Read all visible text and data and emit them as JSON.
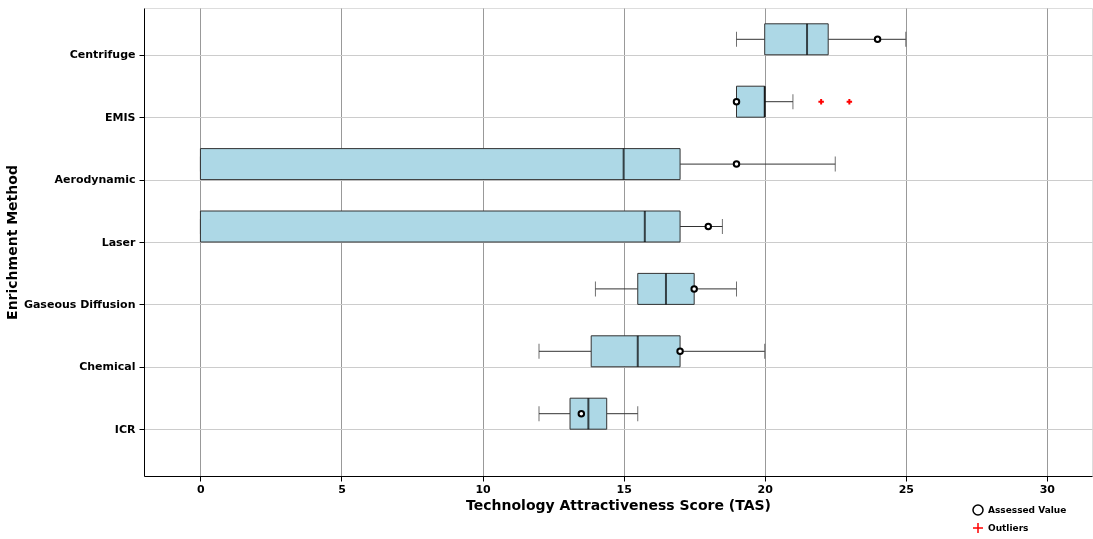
{
  "chart_data": {
    "type": "box",
    "orientation": "horizontal",
    "xlabel": "Technology Attractiveness Score (TAS)",
    "ylabel": "Enrichment Method",
    "categories": [
      "Centrifuge",
      "EMIS",
      "Aerodynamic",
      "Laser",
      "Gaseous Diffusion",
      "Chemical",
      "ICR"
    ],
    "xlim": [
      -2,
      31.6
    ],
    "xticks": [
      0,
      5,
      10,
      15,
      20,
      25,
      30
    ],
    "grid": true,
    "legend": "bottom right",
    "series": [
      {
        "color": "#add8e6",
        "boxes": [
          {
            "low": 19,
            "q1": 20,
            "median": 21.5,
            "q3": 22.25,
            "high": 25
          },
          {
            "low": 19,
            "q1": 19,
            "median": 20,
            "q3": 20,
            "high": 21
          },
          {
            "low": 0,
            "q1": 0,
            "median": 15,
            "q3": 17,
            "high": 22.5
          },
          {
            "low": 0,
            "q1": 0,
            "median": 15.75,
            "q3": 17,
            "high": 18.5
          },
          {
            "low": 14,
            "q1": 15.5,
            "median": 16.5,
            "q3": 17.5,
            "high": 19
          },
          {
            "low": 12,
            "q1": 13.85,
            "median": 15.5,
            "q3": 17,
            "high": 20
          },
          {
            "low": 12,
            "q1": 13.1,
            "median": 13.75,
            "q3": 14.4,
            "high": 15.5
          }
        ]
      },
      {
        "name": "Assessed Value",
        "type": "scatter",
        "marker": "circle",
        "color": "#000000",
        "x": [
          "Centrifuge",
          "EMIS",
          "Aerodynamic",
          "Laser",
          "Gaseous Diffusion",
          "Chemical",
          "ICR"
        ],
        "values": [
          24,
          19,
          19,
          18,
          17.5,
          17,
          13.5
        ]
      },
      {
        "name": "Outliers",
        "type": "scatter",
        "marker": "cross",
        "color": "#ff0000",
        "x": [
          "EMIS",
          "EMIS"
        ],
        "values": [
          22,
          23
        ]
      }
    ]
  }
}
